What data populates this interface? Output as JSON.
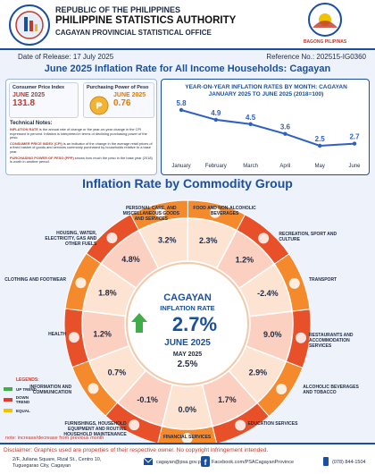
{
  "header": {
    "country": "REPUBLIC OF THE PHILIPPINES",
    "agency": "PHILIPPINE STATISTICS AUTHORITY",
    "office": "CAGAYAN PROVINCIAL STATISTICAL OFFICE",
    "badge": "BAGONG PILIPINAS"
  },
  "release": {
    "date": "Date of Release: 17 July 2025",
    "reference": "Reference No.: 202515-IG0360"
  },
  "title": "June 2025 Inflation Rate for All Income Households: Cagayan",
  "indicators": [
    {
      "name": "Consumer Price Index",
      "period": "JUNE 2025",
      "value": "131.8"
    },
    {
      "name": "Purchasing Power of Peso",
      "period": "JUNE 2025",
      "value": "0.76"
    }
  ],
  "technical_notes": {
    "heading": "Technical Notes:",
    "items": [
      {
        "term": "INFLATION RATE",
        "text": "is the annual rate of change or the year-on-year change in the CPI expressed in percent. Inflation is interpreted in terms of declining purchasing power of the peso."
      },
      {
        "term": "CONSUMER PRICE INDEX (CPI)",
        "text": "is an indicator of the change in the average retail prices of a fixed basket of goods and services commonly purchased by households relative to a base year."
      },
      {
        "term": "PURCHASING POWER OF PESO (PPP)",
        "text": "shows how much the peso in the base year (2018) is worth in another period."
      }
    ]
  },
  "chart_data": {
    "type": "line",
    "title": "YEAR-ON-YEAR INFLATION RATES BY MONTH: CAGAYAN JANUARY 2025 TO JUNE 2025 (2018=100)",
    "categories": [
      "January",
      "February",
      "March",
      "April",
      "May",
      "June"
    ],
    "values": [
      5.8,
      4.9,
      4.5,
      3.6,
      2.5,
      2.7
    ],
    "color": "#2f5fc4"
  },
  "commodity": {
    "title": "Inflation Rate by Commodity Group",
    "groups": [
      {
        "name": "FOOD AND NON-ALCOHOLIC BEVERAGES",
        "value": "2.3%"
      },
      {
        "name": "RECREATION, SPORT AND CULTURE",
        "value": "1.2%"
      },
      {
        "name": "TRANSPORT",
        "value": "-2.4%"
      },
      {
        "name": "RESTAURANTS AND ACCOMMODATION SERVICES",
        "value": "9.0%"
      },
      {
        "name": "ALCOHOLIC BEVERAGES AND TOBACCO",
        "value": "2.9%"
      },
      {
        "name": "EDUCATION SERVICES",
        "value": "1.7%"
      },
      {
        "name": "FINANCIAL SERVICES",
        "value": "0.0%"
      },
      {
        "name": "FURNISHINGS, HOUSEHOLD EQUIPMENT AND ROUTINE HOUSEHOLD MAINTENANCE",
        "value": "-0.1%"
      },
      {
        "name": "INFORMATION AND COMMUNICATION",
        "value": "0.7%"
      },
      {
        "name": "HEALTH",
        "value": "1.2%"
      },
      {
        "name": "CLOTHING AND FOOTWEAR",
        "value": "1.8%"
      },
      {
        "name": "HOUSING, WATER, ELECTRICITY, GAS AND OTHER FUELS",
        "value": "4.8%"
      },
      {
        "name": "PERSONAL CARE, AND MISCELLANEOUS GOODS AND SERVICES",
        "value": "3.2%"
      }
    ],
    "center": {
      "place": "CAGAYAN",
      "label": "INFLATION RATE",
      "value": "2.7%",
      "period": "JUNE 2025",
      "prev_period": "MAY 2025",
      "prev_value": "2.5%"
    }
  },
  "legend": {
    "heading": "LEGENDS:",
    "items": [
      "UP TREND",
      "DOWN TREND",
      "EQUAL"
    ]
  },
  "note": "note: increase/decrease from previous month",
  "footer": {
    "disclaimer": "Disclaimer: Graphics used are properties of their respective owner. No copyright infringement intended.",
    "address": "2/F, Juliana Square, Rizal St., Centro 10, Tuguegarao City, Cagayan",
    "email": "cagayan@psa.gov.ph",
    "facebook": "Facebook.com/PSACagayanProvince",
    "phone": "(078) 844-1504"
  }
}
